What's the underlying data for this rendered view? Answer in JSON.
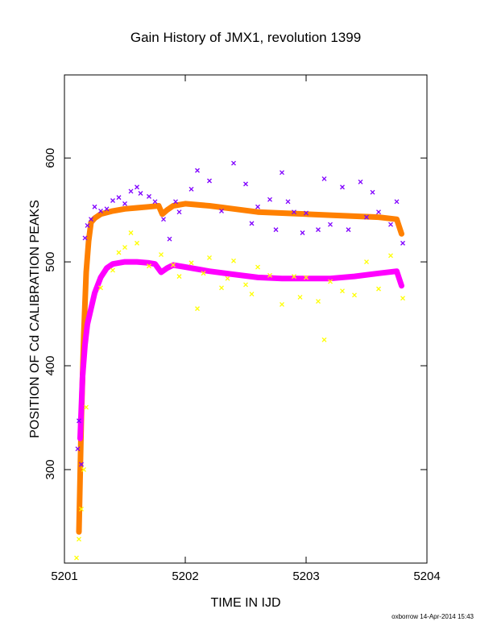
{
  "chart_data": {
    "type": "scatter",
    "title": "Gain History of JMX1, revolution 1399",
    "xlabel": "TIME IN IJD",
    "ylabel": "POSITION OF Cd CALIBRATION PEAKS",
    "xlim": [
      5201,
      5204
    ],
    "ylim": [
      210,
      680
    ],
    "x_ticks": [
      5201,
      5202,
      5203,
      5204
    ],
    "y_ticks": [
      300,
      400,
      500,
      600
    ],
    "grid": false,
    "legend": "none",
    "series": [
      {
        "color": "#ff8000",
        "marker": "plus-trend",
        "x": [
          5201.12,
          5201.14,
          5201.16,
          5201.18,
          5201.2,
          5201.22,
          5201.25,
          5201.3,
          5201.4,
          5201.5,
          5201.6,
          5201.7,
          5201.78,
          5201.81,
          5201.85,
          5201.9,
          5202.0,
          5202.2,
          5202.4,
          5202.6,
          5202.8,
          5203.0,
          5203.2,
          5203.4,
          5203.6,
          5203.75,
          5203.79
        ],
        "y": [
          240,
          350,
          430,
          490,
          520,
          538,
          542,
          546,
          549,
          551,
          552,
          553,
          554,
          546,
          550,
          554,
          556,
          554,
          551,
          548,
          547,
          546,
          545,
          544,
          543,
          541,
          527
        ]
      },
      {
        "color": "#ff00ff",
        "marker": "plus-trend",
        "x": [
          5201.13,
          5201.15,
          5201.17,
          5201.19,
          5201.22,
          5201.25,
          5201.3,
          5201.35,
          5201.4,
          5201.5,
          5201.6,
          5201.7,
          5201.75,
          5201.8,
          5201.85,
          5201.9,
          5202.0,
          5202.2,
          5202.4,
          5202.6,
          5202.8,
          5203.0,
          5203.2,
          5203.4,
          5203.6,
          5203.75,
          5203.79
        ],
        "y": [
          330,
          390,
          420,
          440,
          455,
          470,
          485,
          494,
          498,
          500,
          500,
          499,
          498,
          490,
          494,
          497,
          495,
          491,
          488,
          485,
          484,
          484,
          484,
          486,
          489,
          491,
          477
        ]
      },
      {
        "color": "#8000ff",
        "marker": "x-scatter",
        "x": [
          5201.11,
          5201.12,
          5201.14,
          5201.17,
          5201.19,
          5201.22,
          5201.25,
          5201.3,
          5201.35,
          5201.4,
          5201.45,
          5201.5,
          5201.55,
          5201.6,
          5201.63,
          5201.7,
          5201.75,
          5201.82,
          5201.87,
          5201.92,
          5201.95,
          5202.05,
          5202.1,
          5202.2,
          5202.3,
          5202.4,
          5202.5,
          5202.55,
          5202.6,
          5202.7,
          5202.75,
          5202.8,
          5202.85,
          5202.9,
          5202.97,
          5203.0,
          5203.1,
          5203.15,
          5203.2,
          5203.3,
          5203.35,
          5203.45,
          5203.5,
          5203.55,
          5203.6,
          5203.7,
          5203.75,
          5203.8
        ],
        "y": [
          320,
          347,
          305,
          523,
          535,
          541,
          553,
          549,
          551,
          559,
          562,
          556,
          568,
          572,
          566,
          563,
          558,
          541,
          522,
          558,
          548,
          570,
          588,
          578,
          549,
          595,
          575,
          537,
          553,
          560,
          531,
          586,
          558,
          548,
          528,
          547,
          531,
          580,
          536,
          572,
          531,
          577,
          543,
          567,
          548,
          536,
          558,
          518
        ]
      },
      {
        "color": "#ffff00",
        "marker": "x-scatter",
        "x": [
          5201.1,
          5201.12,
          5201.14,
          5201.16,
          5201.18,
          5201.3,
          5201.4,
          5201.45,
          5201.5,
          5201.55,
          5201.6,
          5201.7,
          5201.8,
          5201.9,
          5201.95,
          5202.05,
          5202.1,
          5202.15,
          5202.2,
          5202.3,
          5202.35,
          5202.4,
          5202.5,
          5202.55,
          5202.6,
          5202.7,
          5202.8,
          5202.9,
          5202.95,
          5203.0,
          5203.1,
          5203.15,
          5203.2,
          5203.3,
          5203.4,
          5203.5,
          5203.6,
          5203.7,
          5203.8
        ],
        "y": [
          215,
          233,
          262,
          300,
          360,
          475,
          492,
          509,
          514,
          528,
          518,
          496,
          507,
          497,
          486,
          499,
          455,
          489,
          504,
          475,
          484,
          501,
          478,
          469,
          495,
          487,
          459,
          486,
          466,
          485,
          462,
          425,
          481,
          472,
          468,
          500,
          474,
          506,
          465
        ]
      }
    ],
    "footer": "oxborrow 14-Apr-2014 15:43"
  }
}
